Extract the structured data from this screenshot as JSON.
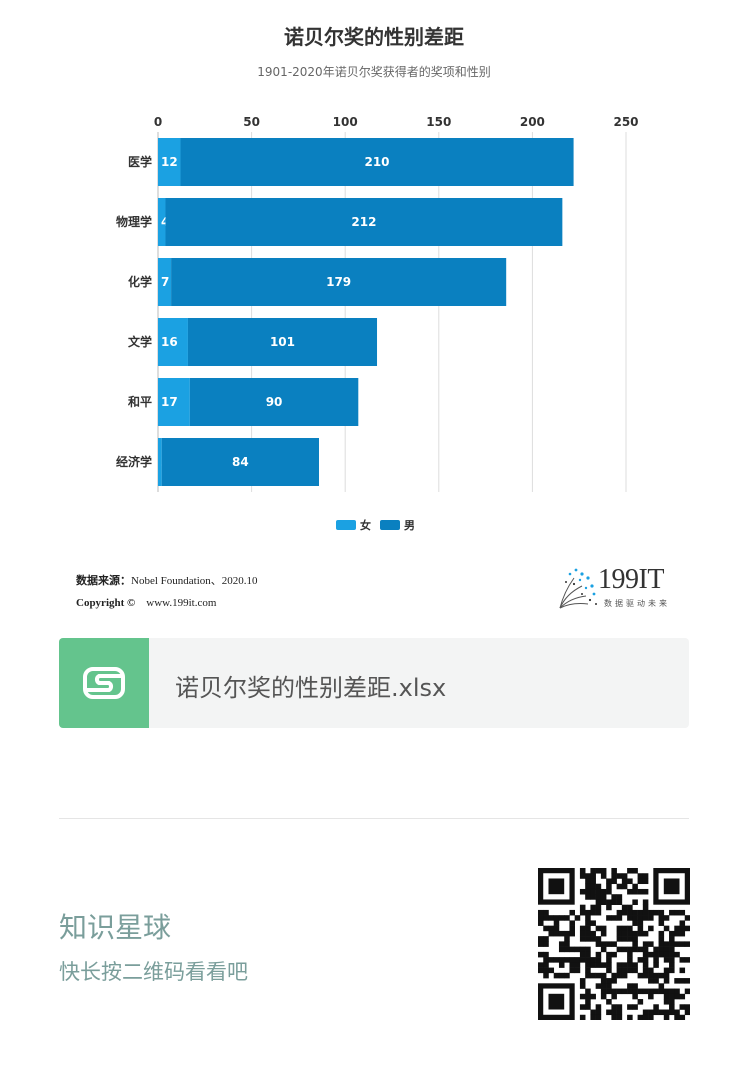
{
  "chart_data": {
    "type": "bar",
    "orientation": "horizontal",
    "stacked": true,
    "title": "诺贝尔奖的性别差距",
    "subtitle": "1901-2020年诺贝尔奖获得者的奖项和性别",
    "categories": [
      "医学",
      "物理学",
      "化学",
      "文学",
      "和平",
      "经济学"
    ],
    "series": [
      {
        "name": "女",
        "color": "#1ba1e2",
        "values": [
          12,
          4,
          7,
          16,
          17,
          2
        ]
      },
      {
        "name": "男",
        "color": "#0a80c0",
        "values": [
          210,
          212,
          179,
          101,
          90,
          84
        ]
      }
    ],
    "xlim": [
      0,
      250
    ],
    "xticks": [
      0,
      50,
      100,
      150,
      200,
      250
    ],
    "x_axis_position": "top",
    "grid": true,
    "legend_position": "bottom-center"
  },
  "source": {
    "label": "数据来源：",
    "value": "Nobel Foundation、2020.10",
    "copyright_label": "Copyright ©",
    "copyright_url": "www.199it.com"
  },
  "logo": {
    "text": "199IT",
    "slogan": "数据驱动未来"
  },
  "file": {
    "icon_letter": "S",
    "name": "诺贝尔奖的性别差距.xlsx",
    "icon_color": "#64c48d"
  },
  "planet": {
    "title": "知识星球",
    "subtitle": "快长按二维码看看吧"
  }
}
